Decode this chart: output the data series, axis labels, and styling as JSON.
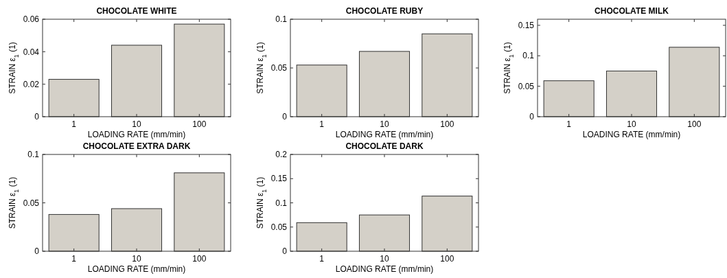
{
  "chart_data": [
    {
      "type": "bar",
      "title": "CHOCOLATE WHITE",
      "xlabel": "LOADING RATE (mm/min)",
      "ylabel": "STRAIN ε$_{1}$ (1)",
      "categories": [
        "1",
        "10",
        "100"
      ],
      "values": [
        0.023,
        0.044,
        0.057
      ],
      "color": "#d4d0c8",
      "ylim": [
        0,
        0.06
      ],
      "yticks": [
        0,
        0.02,
        0.04,
        0.06
      ],
      "grid": false
    },
    {
      "type": "bar",
      "title": "CHOCOLATE RUBY",
      "xlabel": "LOADING RATE (mm/min)",
      "ylabel": "STRAIN ε$_{1}$ (1)",
      "categories": [
        "1",
        "10",
        "100"
      ],
      "values": [
        0.053,
        0.067,
        0.085
      ],
      "color": "#d4d0c8",
      "ylim": [
        0,
        0.1
      ],
      "yticks": [
        0,
        0.05,
        0.1
      ],
      "grid": false
    },
    {
      "type": "bar",
      "title": "CHOCOLATE MILK",
      "xlabel": "LOADING RATE (mm/min)",
      "ylabel": "STRAIN ε$_{1}$ (1)",
      "categories": [
        "1",
        "10",
        "100"
      ],
      "values": [
        0.059,
        0.075,
        0.114
      ],
      "color": "#d4d0c8",
      "ylim": [
        0,
        0.16
      ],
      "yticks": [
        0,
        0.05,
        0.1,
        0.15
      ],
      "grid": false
    },
    {
      "type": "bar",
      "title": "CHOCOLATE EXTRA DARK",
      "xlabel": "LOADING RATE (mm/min)",
      "ylabel": "STRAIN ε$_{1}$ (1)",
      "categories": [
        "1",
        "10",
        "100"
      ],
      "values": [
        0.038,
        0.044,
        0.081
      ],
      "color": "#d4d0c8",
      "ylim": [
        0,
        0.1
      ],
      "yticks": [
        0,
        0.05,
        0.1
      ],
      "grid": false
    },
    {
      "type": "bar",
      "title": "CHOCOLATE DARK",
      "xlabel": "LOADING RATE (mm/min)",
      "ylabel": "STRAIN ε$_{1}$ (1)",
      "categories": [
        "1",
        "10",
        "100"
      ],
      "values": [
        0.059,
        0.075,
        0.114
      ],
      "color": "#d4d0c8",
      "ylim": [
        0,
        0.2
      ],
      "yticks": [
        0,
        0.05,
        0.1,
        0.15,
        0.2
      ],
      "grid": false
    }
  ]
}
